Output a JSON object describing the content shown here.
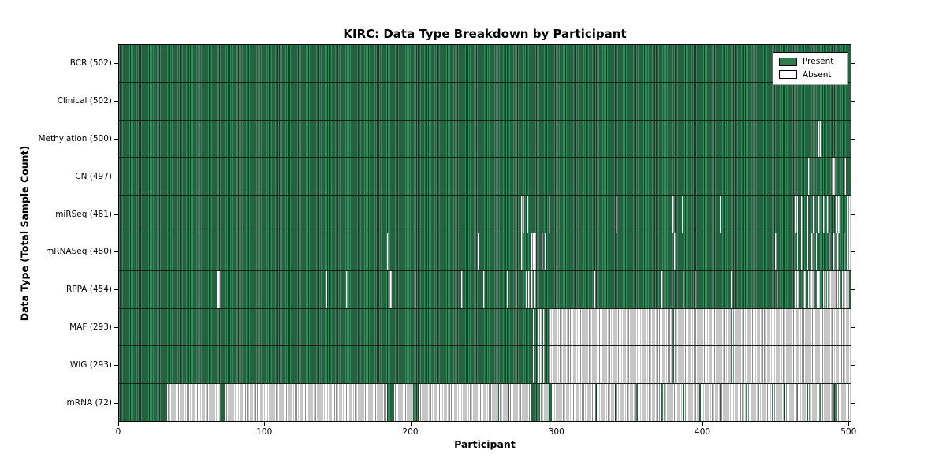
{
  "title": "KIRC: Data Type Breakdown by Participant",
  "legend": {
    "present_label": "Present",
    "absent_label": "Absent",
    "present_color": "#2e7d50",
    "absent_color": "#ffffff"
  },
  "colors": {
    "present_fill": "#37895d",
    "present_edge": "#143c26",
    "absent_fill": "#ffffff",
    "absent_edge": "#8d8d8d"
  },
  "axes": {
    "x": {
      "label": "Participant",
      "ticks": [
        0,
        100,
        200,
        300,
        400,
        500
      ],
      "max": 502
    },
    "y": {
      "label": "Data Type (Total Sample Count)"
    }
  },
  "chart_data": {
    "type": "heatmap",
    "title": "KIRC: Data Type Breakdown by Participant",
    "xlabel": "Participant",
    "ylabel": "Data Type (Total Sample Count)",
    "x_ticks": [
      0,
      100,
      200,
      300,
      400,
      500
    ],
    "participants_total": 502,
    "legend_entries": [
      "Present",
      "Absent"
    ],
    "legend_position": "upper right",
    "rows": [
      {
        "name": "BCR",
        "count": 502,
        "display": "BCR (502)",
        "absent_ranges": []
      },
      {
        "name": "Clinical",
        "count": 502,
        "display": "Clinical (502)",
        "absent_ranges": []
      },
      {
        "name": "Methylation",
        "count": 500,
        "display": "Methylation (500)",
        "absent_ranges": [
          [
            480,
            482
          ]
        ]
      },
      {
        "name": "CN",
        "count": 497,
        "display": "CN (497)",
        "absent_ranges": [
          [
            473,
            474
          ],
          [
            489,
            491
          ],
          [
            497,
            499
          ]
        ]
      },
      {
        "name": "miRSeq",
        "count": 481,
        "display": "miRSeq (481)",
        "absent_ranges": [
          [
            276,
            278
          ],
          [
            280,
            281
          ],
          [
            295,
            296
          ],
          [
            341,
            342
          ],
          [
            380,
            381
          ],
          [
            386,
            387
          ],
          [
            412,
            413
          ],
          [
            464,
            466
          ],
          [
            468,
            469
          ],
          [
            472,
            473
          ],
          [
            476,
            477
          ],
          [
            480,
            481
          ],
          [
            483,
            484
          ],
          [
            486,
            487
          ],
          [
            492,
            495
          ],
          [
            500,
            502
          ]
        ]
      },
      {
        "name": "mRNASeq",
        "count": 480,
        "display": "mRNASeq (480)",
        "absent_ranges": [
          [
            184,
            185
          ],
          [
            246,
            247
          ],
          [
            276,
            277
          ],
          [
            283,
            286
          ],
          [
            287,
            288
          ],
          [
            290,
            291
          ],
          [
            292,
            293
          ],
          [
            381,
            382
          ],
          [
            450,
            451
          ],
          [
            465,
            466
          ],
          [
            468,
            469
          ],
          [
            472,
            473
          ],
          [
            475,
            476
          ],
          [
            478,
            479
          ],
          [
            487,
            488
          ],
          [
            490,
            491
          ],
          [
            493,
            494
          ],
          [
            497,
            498
          ],
          [
            500,
            502
          ]
        ]
      },
      {
        "name": "RPPA",
        "count": 454,
        "display": "RPPA (454)",
        "absent_ranges": [
          [
            67,
            69
          ],
          [
            142,
            143
          ],
          [
            156,
            157
          ],
          [
            185,
            187
          ],
          [
            203,
            204
          ],
          [
            235,
            236
          ],
          [
            250,
            251
          ],
          [
            266,
            267
          ],
          [
            272,
            273
          ],
          [
            279,
            280
          ],
          [
            281,
            282
          ],
          [
            283,
            284
          ],
          [
            285,
            286
          ],
          [
            326,
            327
          ],
          [
            372,
            373
          ],
          [
            379,
            380
          ],
          [
            387,
            388
          ],
          [
            395,
            396
          ],
          [
            420,
            421
          ],
          [
            451,
            452
          ],
          [
            464,
            467
          ],
          [
            469,
            471
          ],
          [
            473,
            477
          ],
          [
            479,
            481
          ],
          [
            483,
            485
          ],
          [
            486,
            492
          ],
          [
            493,
            495
          ],
          [
            496,
            501
          ]
        ]
      },
      {
        "name": "MAF",
        "count": 293,
        "display": "MAF (293)",
        "absent_ranges": [
          [
            284,
            285
          ],
          [
            288,
            290
          ],
          [
            291,
            292
          ],
          [
            295,
            380
          ],
          [
            381,
            420
          ],
          [
            421,
            502
          ]
        ]
      },
      {
        "name": "WIG",
        "count": 293,
        "display": "WIG (293)",
        "absent_ranges": [
          [
            284,
            285
          ],
          [
            288,
            290
          ],
          [
            291,
            292
          ],
          [
            295,
            380
          ],
          [
            381,
            420
          ],
          [
            421,
            502
          ]
        ]
      },
      {
        "name": "mRNA",
        "count": 72,
        "display": "mRNA (72)",
        "absent_ranges": [
          [
            33,
            69
          ],
          [
            73,
            184
          ],
          [
            189,
            202
          ],
          [
            206,
            260
          ],
          [
            261,
            267
          ],
          [
            268,
            283
          ],
          [
            289,
            295
          ],
          [
            297,
            327
          ],
          [
            328,
            340
          ],
          [
            341,
            355
          ],
          [
            356,
            372
          ],
          [
            373,
            387
          ],
          [
            388,
            398
          ],
          [
            399,
            412
          ],
          [
            413,
            430
          ],
          [
            431,
            448
          ],
          [
            449,
            456
          ],
          [
            457,
            465
          ],
          [
            466,
            472
          ],
          [
            473,
            481
          ],
          [
            482,
            490
          ],
          [
            493,
            502
          ]
        ]
      }
    ]
  }
}
